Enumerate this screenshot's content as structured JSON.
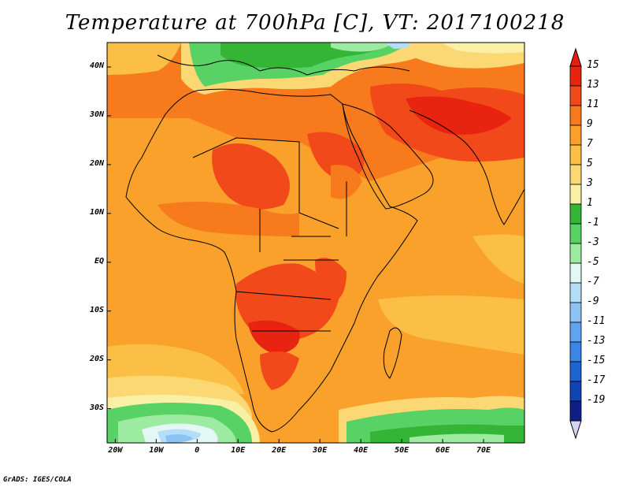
{
  "title": "Temperature at 700hPa [C], VT: 2017100218",
  "credit": "GrADS: IGES/COLA",
  "map": {
    "lat_ticks": [
      "40N",
      "30N",
      "20N",
      "10N",
      "EQ",
      "10S",
      "20S",
      "30S"
    ],
    "lat_values": [
      40,
      30,
      20,
      10,
      0,
      -10,
      -20,
      -30
    ],
    "lon_ticks": [
      "20W",
      "10W",
      "0",
      "10E",
      "20E",
      "30E",
      "40E",
      "50E",
      "60E",
      "70E"
    ],
    "lon_values": [
      -20,
      -10,
      0,
      10,
      20,
      30,
      40,
      50,
      60,
      70
    ],
    "lon_range": [
      -22,
      80
    ],
    "lat_range": [
      -37,
      45
    ]
  },
  "colorbar": {
    "labels": [
      "15",
      "13",
      "11",
      "9",
      "7",
      "5",
      "3",
      "1",
      "-1",
      "-3",
      "-5",
      "-7",
      "-9",
      "-11",
      "-13",
      "-15",
      "-17",
      "-19"
    ],
    "colors": [
      "#e8230f",
      "#f2491b",
      "#f77b1c",
      "#f9a12a",
      "#fbbf45",
      "#fbd874",
      "#faf0a5",
      "#34b535",
      "#58d264",
      "#9ceba0",
      "#e3f7f5",
      "#b4def8",
      "#8cc2f4",
      "#5fa4ee",
      "#3a86e4",
      "#1e64d0",
      "#0f44b4",
      "#0d1f86"
    ],
    "top_arrow_color": "#e51e10",
    "bottom_arrow_color": "#d6d4f4"
  }
}
